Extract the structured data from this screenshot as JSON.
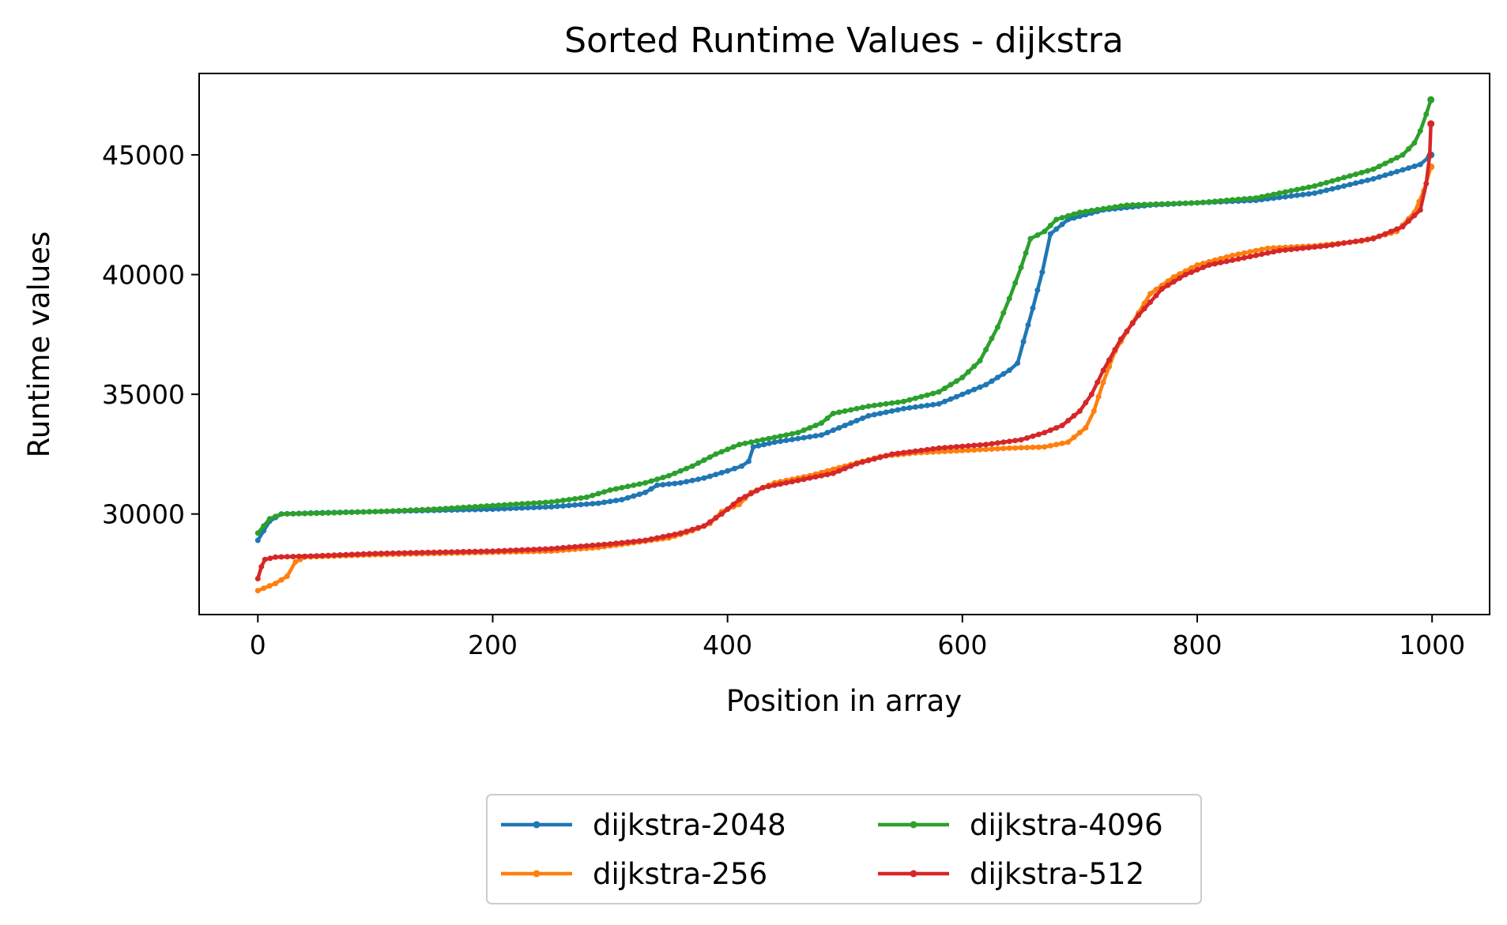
{
  "chart_data": {
    "type": "line",
    "title": "Sorted Runtime Values - dijkstra",
    "xlabel": "Position in array",
    "ylabel": "Runtime values",
    "xlim": [
      -50,
      1049
    ],
    "ylim": [
      25800,
      48400
    ],
    "xticks": [
      0,
      200,
      400,
      600,
      800,
      1000
    ],
    "yticks": [
      30000,
      35000,
      40000,
      45000
    ],
    "grid": false,
    "legend_position": "bottom-center",
    "legend_columns": 2,
    "series": [
      {
        "name": "dijkstra-2048",
        "color": "#1f77b4",
        "points": [
          [
            0,
            28900
          ],
          [
            5,
            29300
          ],
          [
            10,
            29700
          ],
          [
            20,
            30000
          ],
          [
            50,
            30050
          ],
          [
            100,
            30100
          ],
          [
            150,
            30150
          ],
          [
            200,
            30200
          ],
          [
            250,
            30300
          ],
          [
            290,
            30450
          ],
          [
            310,
            30600
          ],
          [
            330,
            30900
          ],
          [
            340,
            31200
          ],
          [
            360,
            31300
          ],
          [
            380,
            31500
          ],
          [
            400,
            31800
          ],
          [
            412,
            32000
          ],
          [
            418,
            32200
          ],
          [
            422,
            32800
          ],
          [
            440,
            33000
          ],
          [
            480,
            33300
          ],
          [
            500,
            33700
          ],
          [
            520,
            34100
          ],
          [
            550,
            34400
          ],
          [
            580,
            34600
          ],
          [
            600,
            35000
          ],
          [
            620,
            35400
          ],
          [
            640,
            36000
          ],
          [
            647,
            36300
          ],
          [
            652,
            37200
          ],
          [
            660,
            38600
          ],
          [
            668,
            40100
          ],
          [
            675,
            41700
          ],
          [
            690,
            42300
          ],
          [
            720,
            42700
          ],
          [
            760,
            42900
          ],
          [
            800,
            43000
          ],
          [
            850,
            43100
          ],
          [
            900,
            43400
          ],
          [
            950,
            44000
          ],
          [
            990,
            44600
          ],
          [
            997,
            44900
          ],
          [
            999,
            45000
          ]
        ]
      },
      {
        "name": "dijkstra-256",
        "color": "#ff7f0e",
        "points": [
          [
            0,
            26800
          ],
          [
            5,
            26900
          ],
          [
            15,
            27100
          ],
          [
            25,
            27400
          ],
          [
            32,
            28000
          ],
          [
            40,
            28200
          ],
          [
            100,
            28300
          ],
          [
            150,
            28350
          ],
          [
            200,
            28400
          ],
          [
            250,
            28450
          ],
          [
            290,
            28600
          ],
          [
            320,
            28800
          ],
          [
            350,
            29000
          ],
          [
            370,
            29300
          ],
          [
            385,
            29600
          ],
          [
            395,
            30100
          ],
          [
            410,
            30400
          ],
          [
            420,
            30900
          ],
          [
            440,
            31300
          ],
          [
            470,
            31600
          ],
          [
            500,
            32000
          ],
          [
            530,
            32400
          ],
          [
            560,
            32550
          ],
          [
            600,
            32650
          ],
          [
            640,
            32750
          ],
          [
            670,
            32800
          ],
          [
            690,
            33000
          ],
          [
            705,
            33600
          ],
          [
            712,
            34300
          ],
          [
            720,
            35500
          ],
          [
            730,
            36800
          ],
          [
            745,
            38000
          ],
          [
            760,
            39200
          ],
          [
            780,
            39900
          ],
          [
            800,
            40400
          ],
          [
            830,
            40800
          ],
          [
            860,
            41100
          ],
          [
            900,
            41200
          ],
          [
            940,
            41400
          ],
          [
            970,
            41800
          ],
          [
            985,
            42600
          ],
          [
            993,
            43500
          ],
          [
            999,
            44500
          ]
        ]
      },
      {
        "name": "dijkstra-4096",
        "color": "#2ca02c",
        "points": [
          [
            0,
            29200
          ],
          [
            5,
            29500
          ],
          [
            10,
            29800
          ],
          [
            20,
            30000
          ],
          [
            50,
            30030
          ],
          [
            100,
            30100
          ],
          [
            150,
            30200
          ],
          [
            200,
            30350
          ],
          [
            250,
            30500
          ],
          [
            280,
            30700
          ],
          [
            300,
            31000
          ],
          [
            330,
            31300
          ],
          [
            350,
            31600
          ],
          [
            370,
            32000
          ],
          [
            390,
            32500
          ],
          [
            410,
            32900
          ],
          [
            430,
            33100
          ],
          [
            460,
            33400
          ],
          [
            480,
            33800
          ],
          [
            490,
            34200
          ],
          [
            520,
            34500
          ],
          [
            550,
            34700
          ],
          [
            580,
            35100
          ],
          [
            600,
            35700
          ],
          [
            615,
            36400
          ],
          [
            630,
            37800
          ],
          [
            640,
            39000
          ],
          [
            650,
            40300
          ],
          [
            658,
            41500
          ],
          [
            670,
            41800
          ],
          [
            680,
            42300
          ],
          [
            700,
            42600
          ],
          [
            740,
            42900
          ],
          [
            800,
            43000
          ],
          [
            850,
            43200
          ],
          [
            900,
            43700
          ],
          [
            950,
            44400
          ],
          [
            975,
            45000
          ],
          [
            985,
            45500
          ],
          [
            990,
            46000
          ],
          [
            995,
            46700
          ],
          [
            999,
            47300
          ]
        ]
      },
      {
        "name": "dijkstra-512",
        "color": "#d62728",
        "points": [
          [
            0,
            27300
          ],
          [
            3,
            27800
          ],
          [
            6,
            28100
          ],
          [
            15,
            28200
          ],
          [
            50,
            28250
          ],
          [
            100,
            28350
          ],
          [
            150,
            28400
          ],
          [
            200,
            28450
          ],
          [
            250,
            28550
          ],
          [
            300,
            28750
          ],
          [
            330,
            28900
          ],
          [
            360,
            29200
          ],
          [
            380,
            29500
          ],
          [
            395,
            30000
          ],
          [
            410,
            30600
          ],
          [
            430,
            31100
          ],
          [
            460,
            31400
          ],
          [
            490,
            31700
          ],
          [
            510,
            32100
          ],
          [
            540,
            32500
          ],
          [
            580,
            32750
          ],
          [
            620,
            32900
          ],
          [
            650,
            33100
          ],
          [
            670,
            33400
          ],
          [
            685,
            33700
          ],
          [
            700,
            34300
          ],
          [
            710,
            35000
          ],
          [
            720,
            36000
          ],
          [
            735,
            37300
          ],
          [
            750,
            38300
          ],
          [
            770,
            39400
          ],
          [
            790,
            40000
          ],
          [
            810,
            40400
          ],
          [
            840,
            40700
          ],
          [
            870,
            41000
          ],
          [
            910,
            41200
          ],
          [
            950,
            41500
          ],
          [
            975,
            42000
          ],
          [
            990,
            42700
          ],
          [
            995,
            43800
          ],
          [
            998,
            45000
          ],
          [
            999,
            46300
          ]
        ]
      }
    ]
  }
}
